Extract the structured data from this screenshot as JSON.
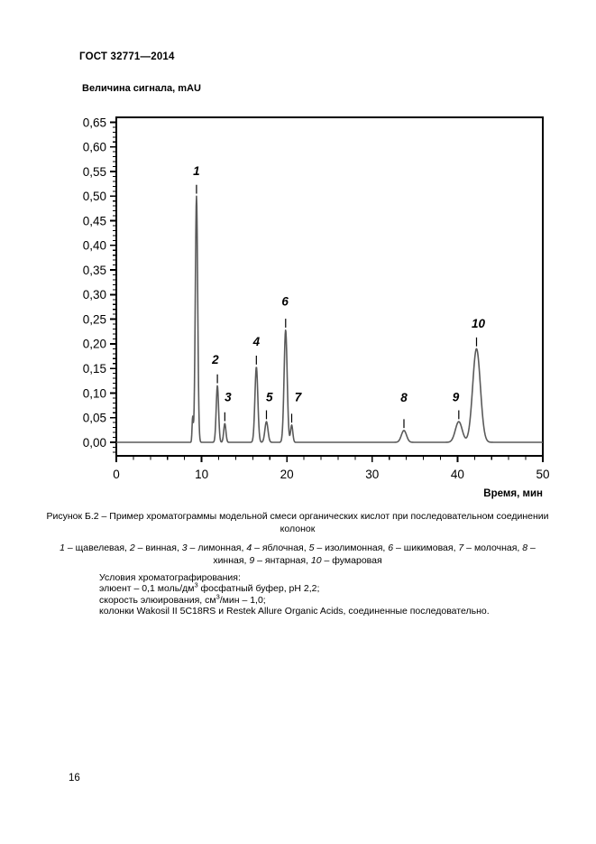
{
  "document": {
    "header": "ГОСТ 32771—2014",
    "page_number": "16"
  },
  "chart_data": {
    "type": "line",
    "kind": "chromatogram",
    "y_axis_title": "Величина сигнала, mAU",
    "x_axis_title": "Время, мин",
    "xlim": [
      0,
      50
    ],
    "ylim": [
      -0.0275,
      0.66
    ],
    "x_major_ticks": [
      0,
      10,
      20,
      30,
      40,
      50
    ],
    "x_tick_labels": [
      "0",
      "10",
      "20",
      "30",
      "40",
      "50"
    ],
    "x_minor_step": 2,
    "y_major_step": 0.05,
    "y_minor_step": 0.01,
    "y_tick_labels": [
      "0,00",
      "0,05",
      "0,10",
      "0,15",
      "0,20",
      "0,25",
      "0,30",
      "0,35",
      "0,40",
      "0,45",
      "0,50",
      "0,55",
      "0,60",
      "0,65"
    ],
    "grid": false,
    "trace_color": "#5a5a5a",
    "peaks": [
      {
        "label": null,
        "time_min": 8.95,
        "height_mAU": 0.05,
        "sigma": 0.07
      },
      {
        "label": "1",
        "time_min": 9.4,
        "height_mAU": 0.5,
        "sigma": 0.14,
        "label_pos": [
          9.4,
          0.551
        ]
      },
      {
        "label": "2",
        "time_min": 11.85,
        "height_mAU": 0.115,
        "sigma": 0.14,
        "label_pos": [
          11.62,
          0.168
        ]
      },
      {
        "label": "3",
        "time_min": 12.72,
        "height_mAU": 0.038,
        "sigma": 0.13,
        "label_pos": [
          13.1,
          0.0915
        ]
      },
      {
        "label": "4",
        "time_min": 16.42,
        "height_mAU": 0.153,
        "sigma": 0.17,
        "label_pos": [
          16.42,
          0.204
        ]
      },
      {
        "label": "5",
        "time_min": 17.6,
        "height_mAU": 0.042,
        "sigma": 0.18,
        "label_pos": [
          17.95,
          0.0915
        ]
      },
      {
        "label": "6",
        "time_min": 19.85,
        "height_mAU": 0.228,
        "sigma": 0.18,
        "label_pos": [
          19.78,
          0.286
        ]
      },
      {
        "label": "7",
        "time_min": 20.56,
        "height_mAU": 0.035,
        "sigma": 0.13,
        "label_pos": [
          21.3,
          0.0915
        ]
      },
      {
        "label": "8",
        "time_min": 33.72,
        "height_mAU": 0.024,
        "sigma": 0.3,
        "label_pos": [
          33.72,
          0.0905
        ]
      },
      {
        "label": "9",
        "time_min": 40.15,
        "height_mAU": 0.042,
        "sigma": 0.4,
        "label_pos": [
          39.8,
          0.0915
        ]
      },
      {
        "label": "10",
        "time_min": 42.23,
        "height_mAU": 0.19,
        "sigma": 0.45,
        "label_pos": [
          42.45,
          0.241
        ]
      }
    ]
  },
  "caption": {
    "lines": [
      "Рисунок Б.2 – Пример хроматограммы модельной смеси органических кислот при последовательном соединении",
      "колонок"
    ]
  },
  "legend": {
    "lines": [
      [
        {
          "t": "1",
          "i": true
        },
        {
          "t": " – щавелевая, "
        },
        {
          "t": "2",
          "i": true
        },
        {
          "t": " – винная, "
        },
        {
          "t": "3",
          "i": true
        },
        {
          "t": " – лимонная, "
        },
        {
          "t": "4",
          "i": true
        },
        {
          "t": " – яблочная, "
        },
        {
          "t": "5",
          "i": true
        },
        {
          "t": " – изолимонная, "
        },
        {
          "t": "6",
          "i": true
        },
        {
          "t": " – шикимовая, "
        },
        {
          "t": "7",
          "i": true
        },
        {
          "t": " – молочная, "
        },
        {
          "t": "8",
          "i": true
        },
        {
          "t": " –"
        }
      ],
      [
        {
          "t": "хинная, "
        },
        {
          "t": "9",
          "i": true
        },
        {
          "t": " – янтарная, "
        },
        {
          "t": "10",
          "i": true
        },
        {
          "t": " – фумаровая"
        }
      ]
    ]
  },
  "conditions": {
    "lines": [
      [
        {
          "t": "Условия хроматографирования:"
        }
      ],
      [
        {
          "t": "элюент – 0,1 моль/дм"
        },
        {
          "t": "3",
          "sup": true
        },
        {
          "t": " фосфатный буфер, pH 2,2;"
        }
      ],
      [
        {
          "t": "скорость элюирования, см"
        },
        {
          "t": "3",
          "sup": true
        },
        {
          "t": "/мин – 1,0;"
        }
      ],
      [
        {
          "t": "колонки Wakosil II 5C18RS и Restek Allure Organic Acids, соединенные последовательно."
        }
      ]
    ]
  }
}
